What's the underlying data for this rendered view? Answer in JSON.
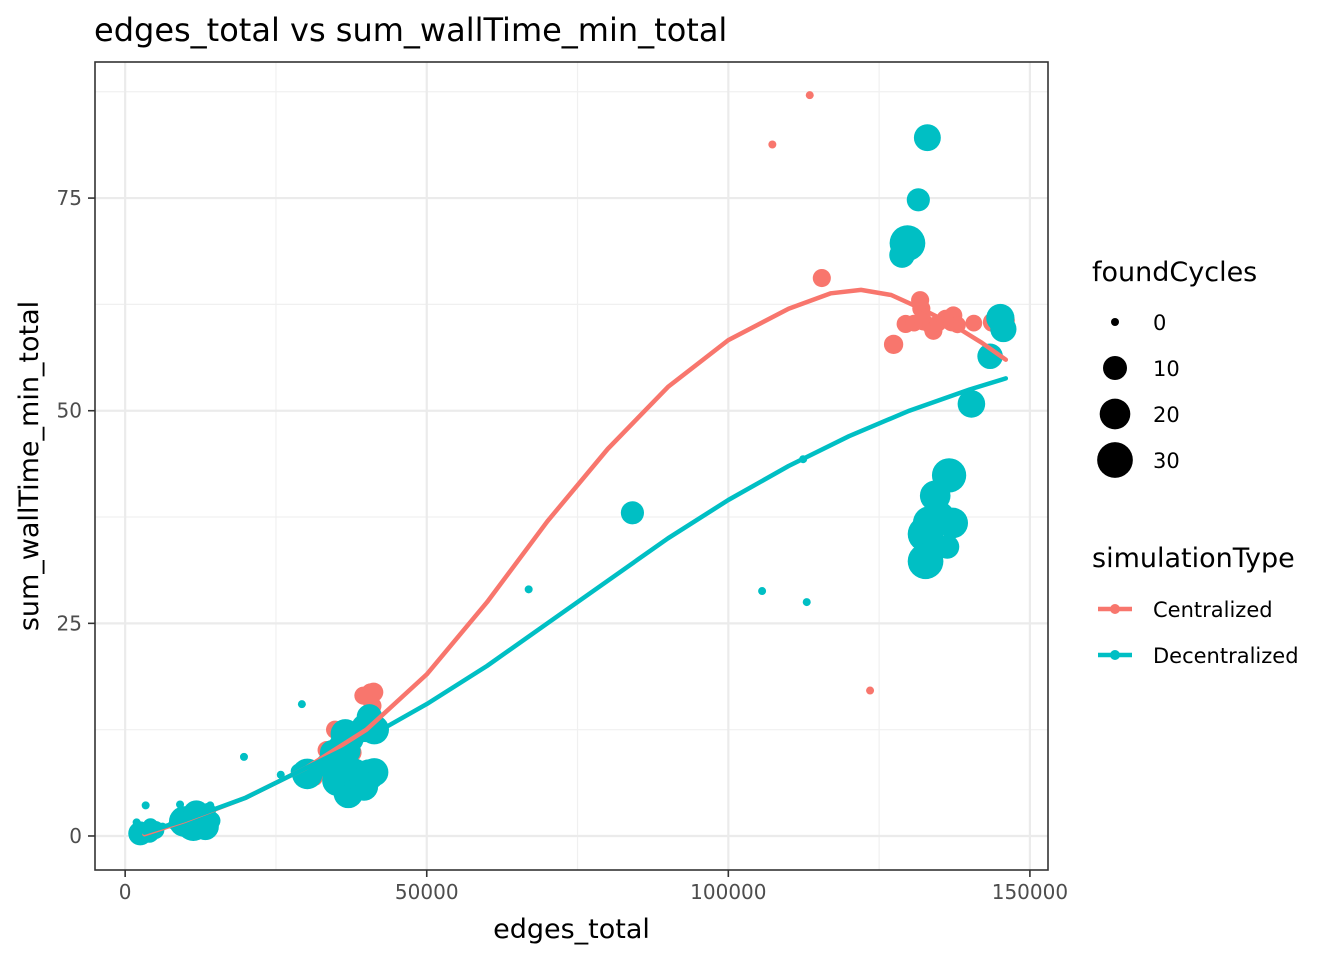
{
  "chart_data": {
    "type": "scatter",
    "title": "edges_total  vs  sum_wallTime_min_total",
    "xlabel": "edges_total",
    "ylabel": "sum_wallTime_min_total",
    "xlim": [
      -5000,
      153000
    ],
    "ylim": [
      -4,
      91
    ],
    "x_ticks": [
      0,
      50000,
      100000,
      150000
    ],
    "x_tick_labels": [
      "0",
      "50000",
      "100000",
      "150000"
    ],
    "y_ticks": [
      0,
      25,
      50,
      75
    ],
    "y_tick_labels": [
      "0",
      "25",
      "50",
      "75"
    ],
    "grid": true,
    "legend_position": "right",
    "size_legend": {
      "title": "foundCycles",
      "entries": [
        {
          "label": "0",
          "value": 0
        },
        {
          "label": "10",
          "value": 10
        },
        {
          "label": "20",
          "value": 20
        },
        {
          "label": "30",
          "value": 30
        }
      ]
    },
    "color_legend": {
      "title": "simulationType",
      "entries": [
        {
          "label": "Centralized",
          "color": "#F8766D"
        },
        {
          "label": "Decentralized",
          "color": "#00BFC4"
        }
      ]
    },
    "series": [
      {
        "name": "Centralized",
        "color": "#F8766D",
        "points": [
          [
            113500,
            87.1,
            0
          ],
          [
            107300,
            81.3,
            0
          ],
          [
            115500,
            65.6,
            4
          ],
          [
            127400,
            57.8,
            5
          ],
          [
            129400,
            60.2,
            4
          ],
          [
            130800,
            60.3,
            3
          ],
          [
            131800,
            63.0,
            4
          ],
          [
            132000,
            62.0,
            4
          ],
          [
            132300,
            60.5,
            4
          ],
          [
            133500,
            60.0,
            3
          ],
          [
            134000,
            59.4,
            4
          ],
          [
            134800,
            60.3,
            3
          ],
          [
            136000,
            60.8,
            4
          ],
          [
            137000,
            60.4,
            4
          ],
          [
            137300,
            61.2,
            4
          ],
          [
            138000,
            60.1,
            3
          ],
          [
            140700,
            60.3,
            3
          ],
          [
            143800,
            60.4,
            5
          ],
          [
            146000,
            60.6,
            4
          ],
          [
            145500,
            59.9,
            3
          ],
          [
            123500,
            17.1,
            0
          ],
          [
            40700,
            16.8,
            5
          ],
          [
            41200,
            16.9,
            5
          ],
          [
            39500,
            16.5,
            4
          ],
          [
            41000,
            15.3,
            4
          ],
          [
            34800,
            12.5,
            4
          ],
          [
            36100,
            12.3,
            4
          ],
          [
            33400,
            10.1,
            4
          ],
          [
            34000,
            8.5,
            4
          ],
          [
            37600,
            9.8,
            5
          ],
          [
            37600,
            7.1,
            3
          ],
          [
            35200,
            7.5,
            3
          ],
          [
            36000,
            10.8,
            5
          ],
          [
            32500,
            7.7,
            3
          ],
          [
            31500,
            6.8,
            2
          ],
          [
            12800,
            2.1,
            1
          ],
          [
            8700,
            1.3,
            1
          ],
          [
            5000,
            0.6,
            0
          ],
          [
            3500,
            0.3,
            0
          ]
        ]
      },
      {
        "name": "Decentralized",
        "color": "#00BFC4",
        "points": [
          [
            133000,
            82.1,
            14
          ],
          [
            131500,
            74.8,
            9
          ],
          [
            129700,
            69.7,
            30
          ],
          [
            128800,
            68.3,
            12
          ],
          [
            145100,
            60.9,
            16
          ],
          [
            145600,
            59.6,
            13
          ],
          [
            143400,
            56.4,
            12
          ],
          [
            140300,
            50.8,
            15
          ],
          [
            136600,
            42.4,
            27
          ],
          [
            134300,
            40.0,
            20
          ],
          [
            135000,
            37.5,
            20
          ],
          [
            133400,
            36.8,
            26
          ],
          [
            132700,
            35.5,
            30
          ],
          [
            137200,
            36.8,
            20
          ],
          [
            132700,
            32.3,
            30
          ],
          [
            136300,
            34.0,
            10
          ],
          [
            84100,
            38.0,
            9
          ],
          [
            112400,
            44.3,
            0
          ],
          [
            66900,
            29.0,
            0
          ],
          [
            105600,
            28.8,
            0
          ],
          [
            113000,
            27.5,
            0
          ],
          [
            29300,
            15.5,
            0
          ],
          [
            19700,
            9.3,
            0
          ],
          [
            25800,
            7.2,
            0
          ],
          [
            28700,
            7.6,
            2
          ],
          [
            30200,
            7.3,
            20
          ],
          [
            36500,
            12.0,
            18
          ],
          [
            37300,
            11.4,
            14
          ],
          [
            35800,
            10.7,
            10
          ],
          [
            39800,
            12.7,
            16
          ],
          [
            41300,
            12.5,
            18
          ],
          [
            40500,
            14.0,
            12
          ],
          [
            36800,
            10.0,
            14
          ],
          [
            34800,
            7.9,
            12
          ],
          [
            35200,
            6.5,
            20
          ],
          [
            37000,
            5.0,
            18
          ],
          [
            38800,
            6.1,
            18
          ],
          [
            39600,
            5.8,
            16
          ],
          [
            40400,
            7.2,
            20
          ],
          [
            41300,
            7.5,
            16
          ],
          [
            38100,
            7.5,
            14
          ],
          [
            36100,
            8.0,
            16
          ],
          [
            33500,
            8.3,
            10
          ],
          [
            34400,
            9.8,
            12
          ],
          [
            9800,
            1.7,
            20
          ],
          [
            11300,
            1.4,
            26
          ],
          [
            12000,
            2.0,
            24
          ],
          [
            13300,
            1.1,
            14
          ],
          [
            11800,
            2.6,
            14
          ],
          [
            9000,
            1.9,
            4
          ],
          [
            10500,
            1.5,
            4
          ],
          [
            14300,
            1.8,
            4
          ],
          [
            13800,
            3.0,
            2
          ],
          [
            9100,
            3.7,
            0
          ],
          [
            3400,
            3.6,
            0
          ],
          [
            4200,
            1.2,
            2
          ],
          [
            5000,
            0.7,
            4
          ],
          [
            2500,
            0.3,
            10
          ],
          [
            4000,
            0.4,
            6
          ],
          [
            1900,
            1.6,
            0
          ],
          [
            14100,
            3.6,
            0
          ],
          [
            6200,
            1.1,
            0
          ],
          [
            7700,
            1.3,
            0
          ],
          [
            2200,
            0.1,
            2
          ]
        ]
      }
    ],
    "smooth_lines": [
      {
        "name": "Centralized",
        "color": "#F8766D",
        "x": [
          3200,
          10000,
          20000,
          30000,
          40000,
          50000,
          60000,
          70000,
          80000,
          90000,
          100000,
          110000,
          117000,
          122000,
          127000,
          132000,
          137000,
          142000,
          146000
        ],
        "y": [
          0.2,
          1.8,
          4.5,
          8.0,
          12.5,
          19.0,
          27.5,
          37.0,
          45.5,
          52.8,
          58.3,
          62.0,
          63.8,
          64.2,
          63.6,
          62.0,
          60.2,
          58.0,
          56.0
        ]
      },
      {
        "name": "Decentralized",
        "color": "#00BFC4",
        "x": [
          3200,
          10000,
          20000,
          30000,
          40000,
          50000,
          60000,
          70000,
          80000,
          90000,
          100000,
          110000,
          120000,
          130000,
          140000,
          146000
        ],
        "y": [
          0.4,
          1.9,
          4.5,
          8.0,
          11.5,
          15.5,
          20.0,
          25.0,
          30.0,
          35.0,
          39.5,
          43.5,
          47.0,
          50.0,
          52.5,
          53.8
        ]
      }
    ]
  }
}
